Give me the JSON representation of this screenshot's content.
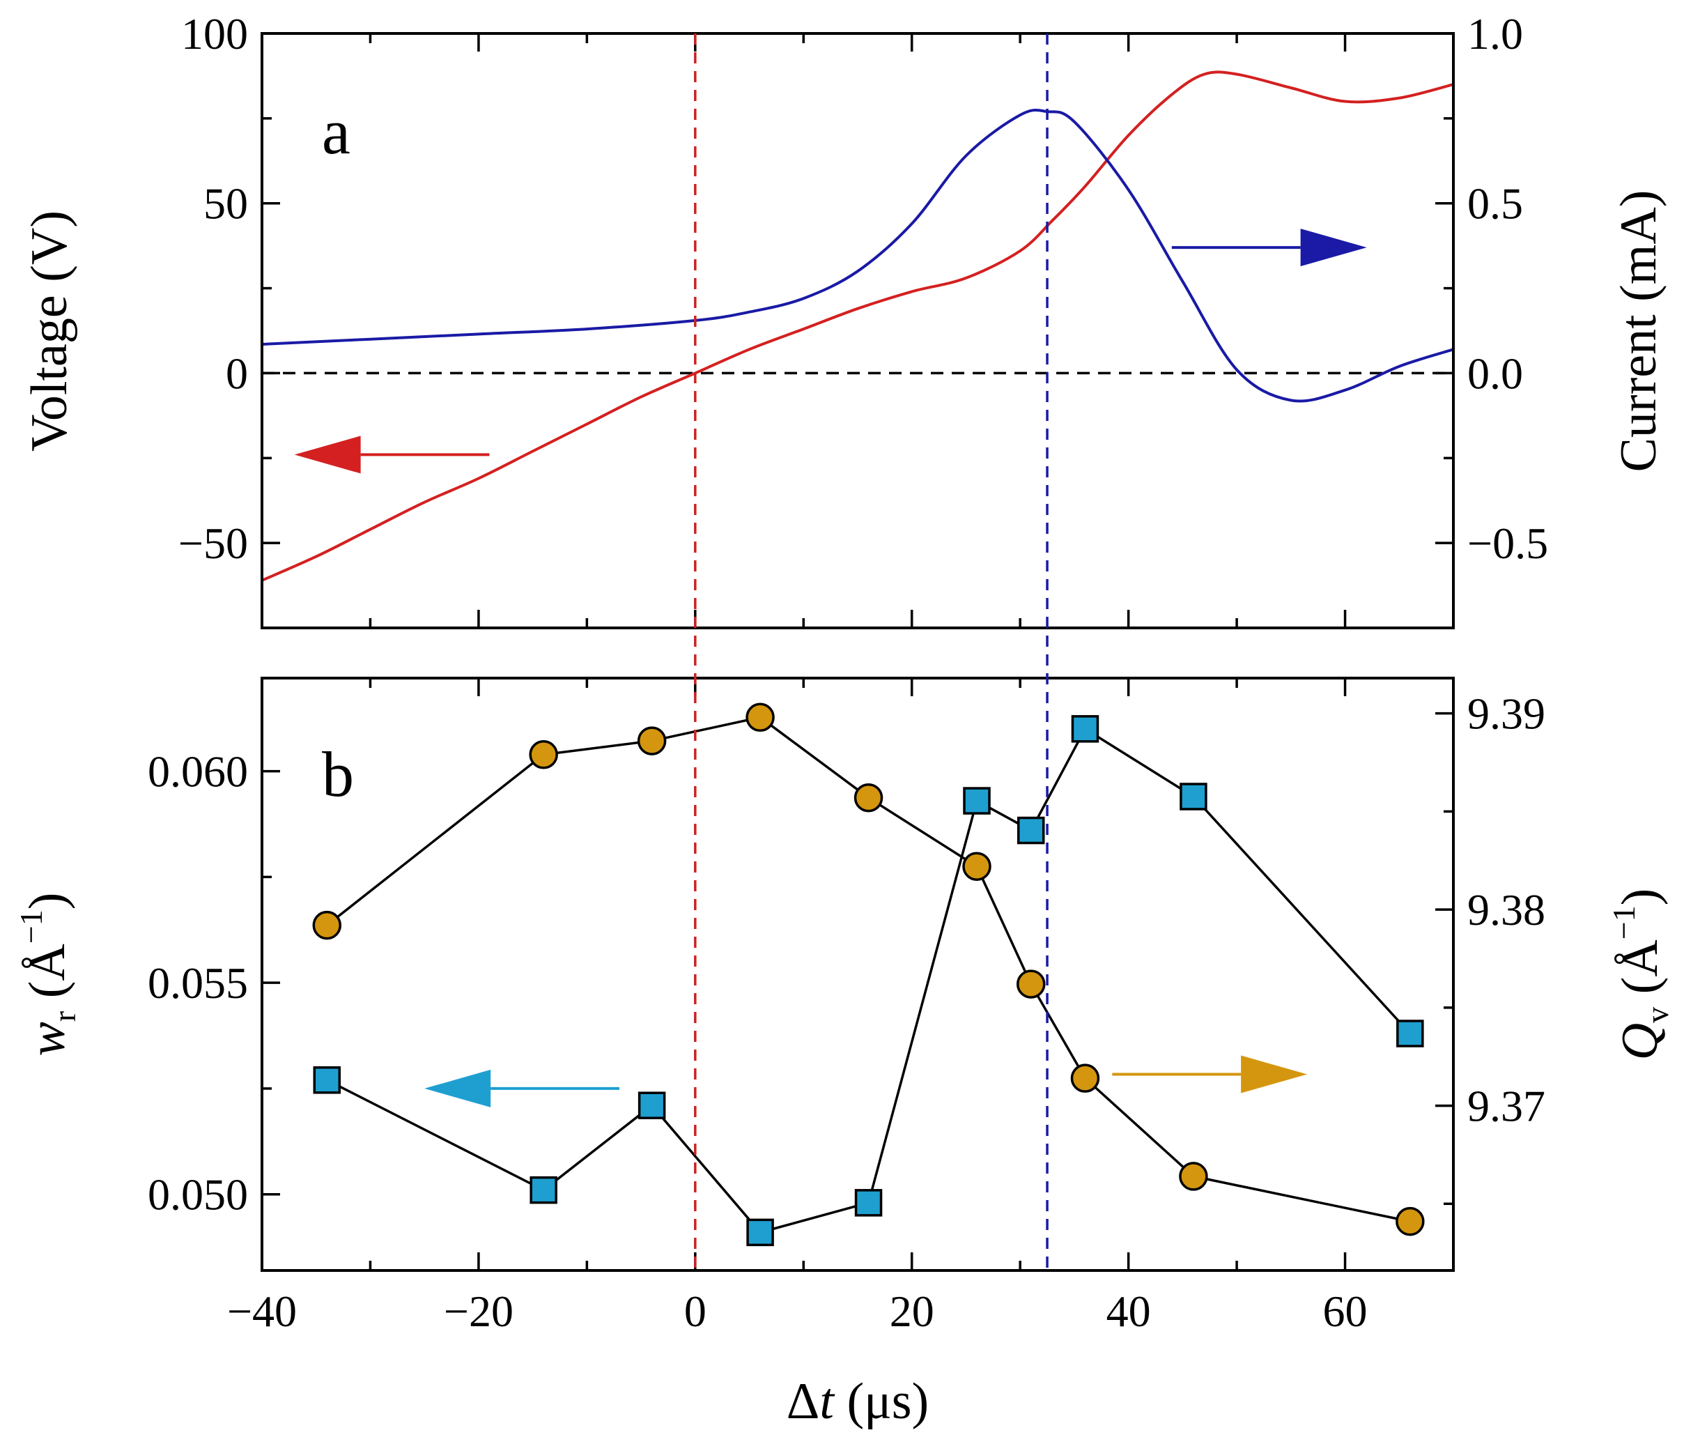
{
  "colors": {
    "voltage": "#d42020",
    "current": "#1a1aa6",
    "wr": "#1e9fd0",
    "qv": "#d4960e",
    "marker_edge": "#000000",
    "zero_line": "#000000",
    "vline_zero": "#cc2222",
    "vline_peak": "#1a1aa6"
  },
  "chart_data": [
    {
      "type": "line",
      "panel": "a",
      "panel_label": "a",
      "x_range": [
        -40,
        70
      ],
      "x_ticks": [
        -40,
        -20,
        0,
        20,
        40,
        60
      ],
      "y_left": {
        "label": "Voltage (V)",
        "range": [
          -75,
          100
        ],
        "ticks": [
          -50,
          0,
          50,
          100
        ],
        "tick_labels": [
          "−50",
          "0",
          "50",
          "100"
        ]
      },
      "y_right": {
        "label": "Current (mA)",
        "range": [
          -0.75,
          1.0
        ],
        "ticks": [
          -0.5,
          0.0,
          0.5,
          1.0
        ],
        "tick_labels": [
          "−0.5",
          "0.0",
          "0.5",
          "1.0"
        ]
      },
      "series": [
        {
          "name": "Voltage",
          "axis": "left",
          "color": "voltage",
          "x": [
            -40,
            -35,
            -30,
            -25,
            -20,
            -15,
            -10,
            -5,
            0,
            5,
            10,
            15,
            20,
            25,
            30,
            33,
            36,
            40,
            44,
            47,
            50,
            55,
            60,
            65,
            70
          ],
          "values": [
            -61,
            -54,
            -46,
            -38,
            -31,
            -23,
            -15,
            -7,
            0,
            7,
            13,
            19,
            24,
            28,
            36,
            45,
            55,
            70,
            82,
            88,
            88,
            84,
            80,
            81,
            85
          ]
        },
        {
          "name": "Current",
          "axis": "right",
          "color": "current",
          "x": [
            -40,
            -30,
            -20,
            -10,
            0,
            5,
            10,
            15,
            20,
            25,
            30,
            32.5,
            35,
            40,
            45,
            50,
            55,
            60,
            65,
            70
          ],
          "values": [
            0.085,
            0.1,
            0.115,
            0.13,
            0.155,
            0.18,
            0.22,
            0.3,
            0.44,
            0.64,
            0.76,
            0.77,
            0.74,
            0.54,
            0.27,
            0.01,
            -0.08,
            -0.05,
            0.02,
            0.07
          ]
        }
      ],
      "reference_lines": {
        "horizontal_zero": 0,
        "vertical": [
          0,
          32.5
        ]
      },
      "annotations": [
        {
          "text": "",
          "meaning": "arrow pointing to left axis (Voltage)",
          "color": "voltage",
          "from": [
            -19,
            -24
          ],
          "to": [
            -37,
            -24
          ]
        },
        {
          "text": "",
          "meaning": "arrow pointing to right axis (Current)",
          "color": "current",
          "from": [
            44,
            0.37
          ],
          "to": [
            62,
            0.37
          ]
        }
      ]
    },
    {
      "type": "scatter",
      "panel": "b",
      "panel_label": "b",
      "x_range": [
        -40,
        70
      ],
      "x_ticks": [
        -40,
        -20,
        0,
        20,
        40,
        60
      ],
      "x_tick_labels": [
        "−40",
        "−20",
        "0",
        "20",
        "40",
        "60"
      ],
      "xlabel": {
        "prefix": "Δ",
        "variable": "t",
        "units": " (μs)"
      },
      "y_left": {
        "label": {
          "symbol": "w",
          "subscript": "r",
          "units": " (Å",
          "exponent": "−1",
          "close": ")"
        },
        "range": [
          0.0482,
          0.0622
        ],
        "ticks": [
          0.05,
          0.055,
          0.06
        ],
        "tick_labels": [
          "0.050",
          "0.055",
          "0.060"
        ]
      },
      "y_right": {
        "label": {
          "symbol": "Q",
          "subscript": "v",
          "units": " (Å",
          "exponent": "−1",
          "close": ")"
        },
        "range": [
          9.3616,
          9.3918
        ],
        "ticks": [
          9.37,
          9.38,
          9.39
        ],
        "tick_labels": [
          "9.37",
          "9.38",
          "9.39"
        ]
      },
      "series": [
        {
          "name": "w_r",
          "axis": "left",
          "marker": "square",
          "color": "wr",
          "x": [
            -34,
            -14,
            -4,
            6,
            16,
            26,
            31,
            36,
            46,
            66
          ],
          "values": [
            0.0527,
            0.0501,
            0.0521,
            0.0491,
            0.0498,
            0.0593,
            0.0586,
            0.061,
            0.0594,
            0.0538
          ]
        },
        {
          "name": "Q_v",
          "axis": "right",
          "marker": "circle",
          "color": "qv",
          "x": [
            -34,
            -14,
            -4,
            6,
            16,
            26,
            31,
            36,
            46,
            66
          ],
          "values": [
            9.3792,
            9.3879,
            9.3886,
            9.3898,
            9.3857,
            9.3822,
            9.3762,
            9.3714,
            9.3664,
            9.3641
          ]
        }
      ],
      "reference_lines": {
        "vertical": [
          0,
          32.5
        ]
      },
      "annotations": [
        {
          "text": "",
          "meaning": "arrow pointing to left axis (w_r)",
          "color": "wr",
          "from": [
            -7,
            0.0525
          ],
          "to": [
            -25,
            0.0525
          ]
        },
        {
          "text": "",
          "meaning": "arrow pointing to right axis (Q_v)",
          "color": "qv",
          "from": [
            38.5,
            9.3716
          ],
          "to": [
            56.5,
            9.3716
          ]
        }
      ]
    }
  ]
}
